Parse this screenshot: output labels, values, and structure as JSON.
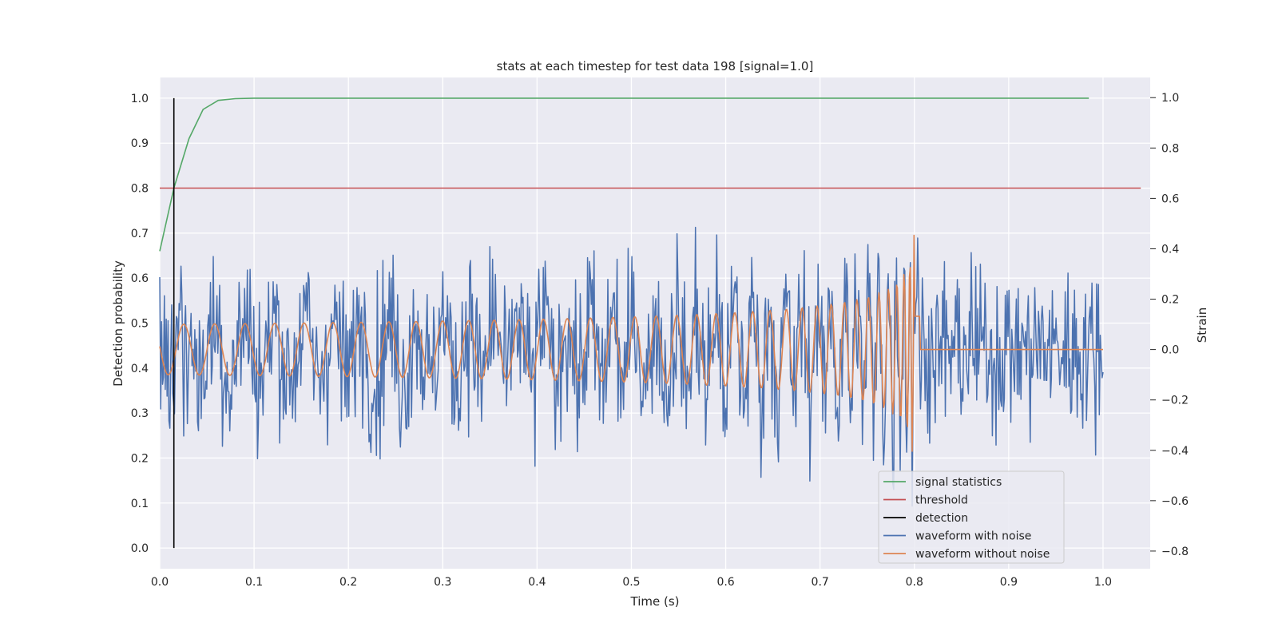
{
  "chart_data": {
    "type": "line",
    "title": "stats at each timestep for test data 198 [signal=1.0]",
    "xlabel": "Time (s)",
    "ylabel_left": "Detection probability",
    "ylabel_right": "Strain",
    "xlim": [
      0.0,
      1.05
    ],
    "ylim_left": [
      -0.046,
      1.046
    ],
    "ylim_right": [
      -0.87,
      1.08
    ],
    "x_ticks": [
      "0.0",
      "0.1",
      "0.2",
      "0.3",
      "0.4",
      "0.5",
      "0.6",
      "0.7",
      "0.8",
      "0.9",
      "1.0"
    ],
    "x_tick_values": [
      0.0,
      0.1,
      0.2,
      0.3,
      0.4,
      0.5,
      0.6,
      0.7,
      0.8,
      0.9,
      1.0
    ],
    "y_left_ticks": [
      "0.0",
      "0.1",
      "0.2",
      "0.3",
      "0.4",
      "0.5",
      "0.6",
      "0.7",
      "0.8",
      "0.9",
      "1.0"
    ],
    "y_left_tick_values": [
      0.0,
      0.1,
      0.2,
      0.3,
      0.4,
      0.5,
      0.6,
      0.7,
      0.8,
      0.9,
      1.0
    ],
    "y_right_ticks": [
      "−0.8",
      "−0.6",
      "−0.4",
      "−0.2",
      "0.0",
      "0.2",
      "0.4",
      "0.6",
      "0.8",
      "1.0"
    ],
    "y_right_tick_values": [
      -0.8,
      -0.6,
      -0.4,
      -0.2,
      0.0,
      0.2,
      0.4,
      0.6,
      0.8,
      1.0
    ],
    "grid": true,
    "legend_position": "lower right",
    "series": [
      {
        "name": "signal statistics",
        "axis": "left",
        "color": "#55a868",
        "x": [
          0.0,
          0.015,
          0.031,
          0.046,
          0.062,
          0.08,
          0.1,
          0.2,
          0.4,
          0.6,
          0.8,
          0.985
        ],
        "y": [
          0.66,
          0.8,
          0.91,
          0.975,
          0.995,
          0.999,
          1.0,
          1.0,
          1.0,
          1.0,
          1.0,
          1.0
        ]
      },
      {
        "name": "threshold",
        "axis": "left",
        "color": "#c44e52",
        "x": [
          0.0,
          1.04
        ],
        "y": [
          0.8,
          0.8
        ]
      },
      {
        "name": "detection",
        "axis": "left",
        "color": "#000000",
        "x": [
          0.015,
          0.015
        ],
        "y": [
          0.0,
          1.0
        ]
      },
      {
        "name": "waveform with noise",
        "axis": "right",
        "color": "#4c72b0",
        "description_generated": "noisy strain around a chirp, 0 to 1.0 s"
      },
      {
        "name": "waveform without noise",
        "axis": "right",
        "color": "#dd8452",
        "description_generated": "chirp rising to merger near 0.8 s, flat afterwards"
      }
    ]
  },
  "colors": {
    "axes_bg": "#eaeaf2",
    "grid": "#ffffff",
    "text": "#262626"
  }
}
